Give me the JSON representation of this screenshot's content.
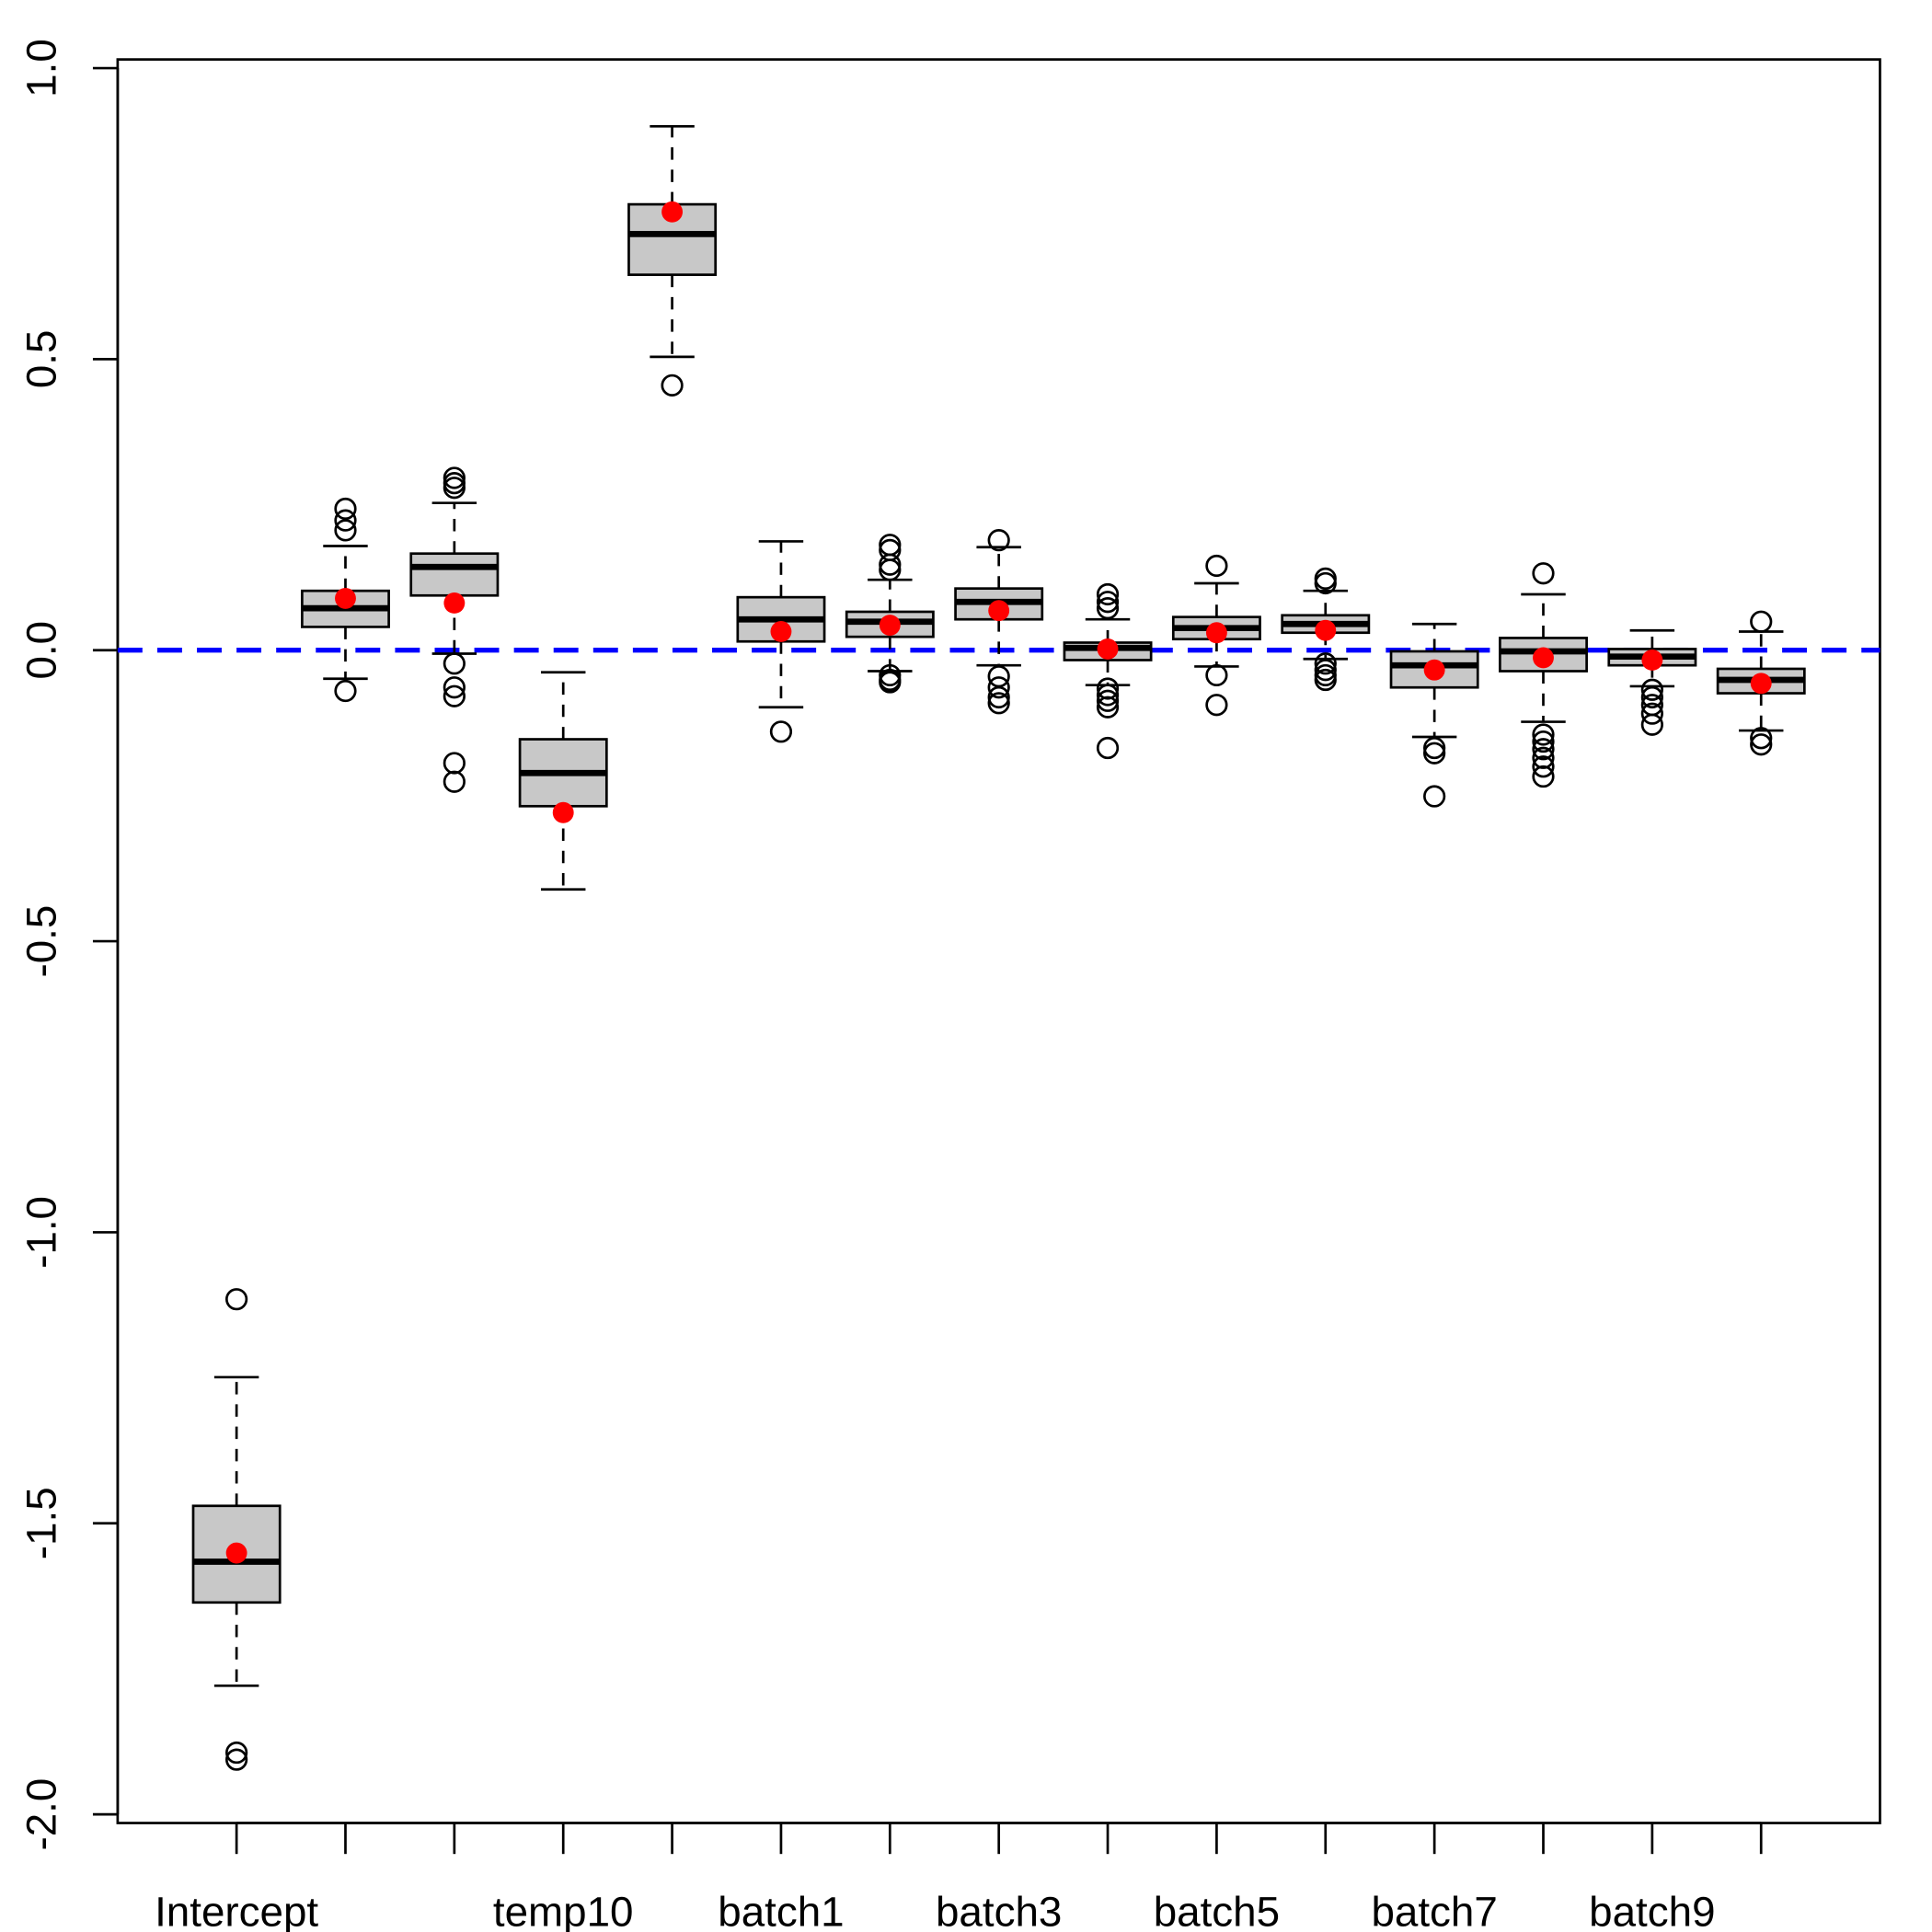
{
  "chart_data": {
    "type": "boxplot",
    "title": "",
    "xlabel": "",
    "ylabel": "",
    "ylim": [
      -2.0,
      1.0
    ],
    "yticks": [
      "-2.0",
      "-1.5",
      "-1.0",
      "-0.5",
      "0.0",
      "0.5",
      "1.0"
    ],
    "ytick_values": [
      -2.0,
      -1.5,
      -1.0,
      -0.5,
      0.0,
      0.5,
      1.0
    ],
    "reference_line": {
      "y": 0.0,
      "color": "#0000ff",
      "style": "dashed"
    },
    "colors": {
      "box_fill": "#c8c8c8",
      "mean_point": "#ff0000",
      "reference": "#0000ff"
    },
    "grid": false,
    "categories": [
      "Intercept",
      "",
      "",
      "temp10",
      "",
      "batch1",
      "",
      "batch3",
      "",
      "batch5",
      "",
      "batch7",
      "",
      "batch9",
      ""
    ],
    "boxes": [
      {
        "lower": -1.779,
        "q1": -1.636,
        "median": -1.566,
        "q3": -1.47,
        "upper": -1.249,
        "mean": -1.551,
        "outliers": [
          -1.115,
          -1.894,
          -1.906
        ]
      },
      {
        "lower": -0.049,
        "q1": 0.04,
        "median": 0.072,
        "q3": 0.102,
        "upper": 0.179,
        "mean": 0.089,
        "outliers": [
          0.243,
          0.223,
          0.206,
          -0.07
        ]
      },
      {
        "lower": -0.006,
        "q1": 0.094,
        "median": 0.143,
        "q3": 0.166,
        "upper": 0.253,
        "mean": 0.081,
        "outliers": [
          0.296,
          0.287,
          0.279,
          -0.023,
          -0.064,
          -0.079,
          -0.194,
          -0.226
        ]
      },
      {
        "lower": -0.411,
        "q1": -0.268,
        "median": -0.211,
        "q3": -0.153,
        "upper": -0.038,
        "mean": -0.279,
        "outliers": []
      },
      {
        "lower": 0.504,
        "q1": 0.645,
        "median": 0.715,
        "q3": 0.766,
        "upper": 0.9,
        "mean": 0.753,
        "outliers": [
          0.455
        ]
      },
      {
        "lower": -0.098,
        "q1": 0.015,
        "median": 0.053,
        "q3": 0.091,
        "upper": 0.187,
        "mean": 0.032,
        "outliers": [
          -0.14
        ]
      },
      {
        "lower": -0.036,
        "q1": 0.023,
        "median": 0.049,
        "q3": 0.066,
        "upper": 0.121,
        "mean": 0.043,
        "outliers": [
          0.181,
          0.172,
          0.147,
          0.138,
          -0.043,
          -0.051,
          -0.055
        ]
      },
      {
        "lower": -0.026,
        "q1": 0.053,
        "median": 0.083,
        "q3": 0.106,
        "upper": 0.177,
        "mean": 0.068,
        "outliers": [
          0.189,
          -0.045,
          -0.064,
          -0.081,
          -0.091
        ]
      },
      {
        "lower": -0.06,
        "q1": -0.017,
        "median": 0.004,
        "q3": 0.013,
        "upper": 0.053,
        "mean": 0.002,
        "outliers": [
          0.096,
          0.083,
          0.072,
          -0.066,
          -0.077,
          -0.087,
          -0.098,
          -0.168
        ]
      },
      {
        "lower": -0.028,
        "q1": 0.019,
        "median": 0.038,
        "q3": 0.057,
        "upper": 0.115,
        "mean": 0.03,
        "outliers": [
          0.145,
          -0.043,
          -0.094
        ]
      },
      {
        "lower": -0.015,
        "q1": 0.03,
        "median": 0.045,
        "q3": 0.06,
        "upper": 0.102,
        "mean": 0.034,
        "outliers": [
          0.123,
          0.115,
          -0.023,
          -0.034,
          -0.043,
          -0.051
        ]
      },
      {
        "lower": -0.149,
        "q1": -0.064,
        "median": -0.026,
        "q3": -0.002,
        "upper": 0.045,
        "mean": -0.034,
        "outliers": [
          -0.168,
          -0.177,
          -0.251
        ]
      },
      {
        "lower": -0.123,
        "q1": -0.036,
        "median": -0.002,
        "q3": 0.021,
        "upper": 0.096,
        "mean": -0.013,
        "outliers": [
          0.132,
          -0.145,
          -0.157,
          -0.17,
          -0.185,
          -0.2,
          -0.217
        ]
      },
      {
        "lower": -0.062,
        "q1": -0.026,
        "median": -0.011,
        "q3": 0.002,
        "upper": 0.034,
        "mean": -0.017,
        "outliers": [
          -0.068,
          -0.081,
          -0.094,
          -0.109,
          -0.128
        ]
      },
      {
        "lower": -0.138,
        "q1": -0.074,
        "median": -0.051,
        "q3": -0.032,
        "upper": 0.032,
        "mean": -0.057,
        "outliers": [
          0.049,
          -0.151,
          -0.162
        ]
      }
    ]
  }
}
